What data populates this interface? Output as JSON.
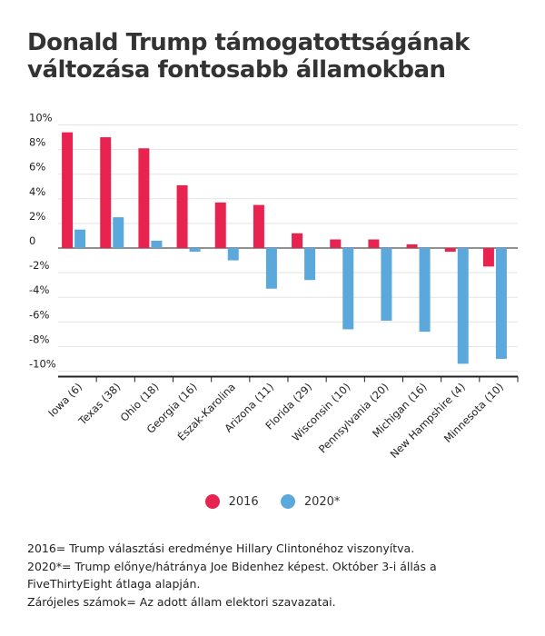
{
  "title": "Donald Trump támogatottságának változása fontosabb államokban",
  "colors": {
    "s2016": "#e8234f",
    "s2020": "#5ba8dc"
  },
  "legend": {
    "s2016": "2016",
    "s2020": "2020*"
  },
  "notes": [
    "2016= Trump választási eredménye Hillary Clintonéhoz viszonyítva.",
    "2020*= Trump előnye/hátránya Joe Bidenhez képest. Október 3-i állás a FiveThirtyEight átlaga alapján.",
    "Zárójeles számok= Az adott állam elektori szavazatai."
  ],
  "chart_data": {
    "type": "bar",
    "categories": [
      "Iowa (6)",
      "Texas (38)",
      "Ohio (18)",
      "Georgia (16)",
      "Észak-Karolina",
      "Arizona (11)",
      "Florida (29)",
      "Wisconsin (10)",
      "Pennsylvania (20)",
      "Michigan (16)",
      "New Hampshire (4)",
      "Minnesota (10)"
    ],
    "series": [
      {
        "name": "2016",
        "values": [
          9.4,
          9.0,
          8.1,
          5.1,
          3.7,
          3.5,
          1.2,
          0.7,
          0.7,
          0.3,
          -0.3,
          -1.5
        ]
      },
      {
        "name": "2020*",
        "values": [
          1.5,
          2.5,
          0.6,
          -0.3,
          -1.0,
          -3.3,
          -2.6,
          -6.6,
          -5.9,
          -6.8,
          -9.4,
          -9.0
        ]
      }
    ],
    "ylim": [
      -10,
      10
    ],
    "yticks": [
      "10%",
      "8%",
      "6%",
      "4%",
      "2%",
      "0",
      "-2%",
      "-4%",
      "-6%",
      "-8%",
      "-10%"
    ],
    "ytick_values": [
      10,
      8,
      6,
      4,
      2,
      0,
      -2,
      -4,
      -6,
      -8,
      -10
    ],
    "xlabel": "",
    "ylabel": ""
  }
}
